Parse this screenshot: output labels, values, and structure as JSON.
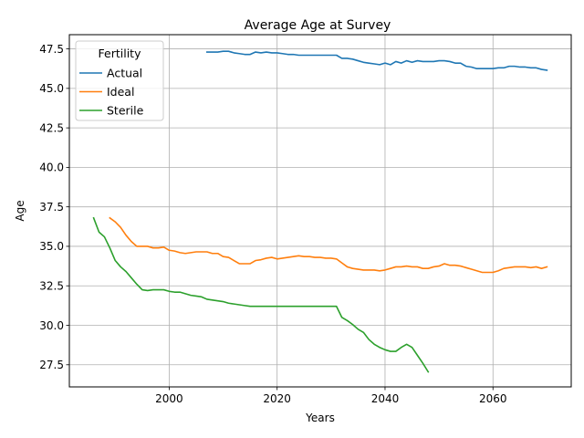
{
  "chart_data": {
    "type": "line",
    "title": "Average Age at Survey",
    "xlabel": "Years",
    "ylabel": "Age",
    "xlim": [
      1981.5,
      2074.5
    ],
    "ylim": [
      26.1,
      48.4
    ],
    "xticks": [
      2000,
      2020,
      2040,
      2060
    ],
    "yticks": [
      27.5,
      30.0,
      32.5,
      35.0,
      37.5,
      40.0,
      42.5,
      45.0,
      47.5
    ],
    "ytick_labels": [
      "27.5",
      "30.0",
      "32.5",
      "35.0",
      "37.5",
      "40.0",
      "42.5",
      "45.0",
      "47.5"
    ],
    "grid": true,
    "legend": {
      "title": "Fertility",
      "position": "top-left"
    },
    "series": [
      {
        "name": "Actual",
        "color": "#1f77b4",
        "points": [
          [
            2007,
            47.3
          ],
          [
            2008,
            47.3
          ],
          [
            2009,
            47.3
          ],
          [
            2010,
            47.35
          ],
          [
            2011,
            47.35
          ],
          [
            2012,
            47.25
          ],
          [
            2013,
            47.2
          ],
          [
            2014,
            47.15
          ],
          [
            2015,
            47.15
          ],
          [
            2016,
            47.3
          ],
          [
            2017,
            47.25
          ],
          [
            2018,
            47.3
          ],
          [
            2019,
            47.25
          ],
          [
            2020,
            47.25
          ],
          [
            2021,
            47.2
          ],
          [
            2022,
            47.15
          ],
          [
            2023,
            47.15
          ],
          [
            2024,
            47.1
          ],
          [
            2025,
            47.1
          ],
          [
            2026,
            47.1
          ],
          [
            2027,
            47.1
          ],
          [
            2028,
            47.1
          ],
          [
            2029,
            47.1
          ],
          [
            2030,
            47.1
          ],
          [
            2031,
            47.1
          ],
          [
            2032,
            46.9
          ],
          [
            2033,
            46.9
          ],
          [
            2034,
            46.85
          ],
          [
            2035,
            46.75
          ],
          [
            2036,
            46.65
          ],
          [
            2037,
            46.6
          ],
          [
            2038,
            46.55
          ],
          [
            2039,
            46.5
          ],
          [
            2040,
            46.6
          ],
          [
            2041,
            46.5
          ],
          [
            2042,
            46.7
          ],
          [
            2043,
            46.6
          ],
          [
            2044,
            46.75
          ],
          [
            2045,
            46.65
          ],
          [
            2046,
            46.75
          ],
          [
            2047,
            46.7
          ],
          [
            2048,
            46.7
          ],
          [
            2049,
            46.7
          ],
          [
            2050,
            46.75
          ],
          [
            2051,
            46.75
          ],
          [
            2052,
            46.7
          ],
          [
            2053,
            46.6
          ],
          [
            2054,
            46.6
          ],
          [
            2055,
            46.4
          ],
          [
            2056,
            46.35
          ],
          [
            2057,
            46.25
          ],
          [
            2058,
            46.25
          ],
          [
            2059,
            46.25
          ],
          [
            2060,
            46.25
          ],
          [
            2061,
            46.3
          ],
          [
            2062,
            46.3
          ],
          [
            2063,
            46.4
          ],
          [
            2064,
            46.4
          ],
          [
            2065,
            46.35
          ],
          [
            2066,
            46.35
          ],
          [
            2067,
            46.3
          ],
          [
            2068,
            46.3
          ],
          [
            2069,
            46.2
          ],
          [
            2070,
            46.15
          ]
        ]
      },
      {
        "name": "Ideal",
        "color": "#ff7f0e",
        "points": [
          [
            1989,
            36.8
          ],
          [
            1990,
            36.55
          ],
          [
            1991,
            36.2
          ],
          [
            1992,
            35.7
          ],
          [
            1993,
            35.3
          ],
          [
            1994,
            35.0
          ],
          [
            1995,
            35.0
          ],
          [
            1996,
            35.0
          ],
          [
            1997,
            34.9
          ],
          [
            1998,
            34.9
          ],
          [
            1999,
            34.95
          ],
          [
            2000,
            34.75
          ],
          [
            2001,
            34.7
          ],
          [
            2002,
            34.6
          ],
          [
            2003,
            34.55
          ],
          [
            2004,
            34.6
          ],
          [
            2005,
            34.65
          ],
          [
            2006,
            34.65
          ],
          [
            2007,
            34.65
          ],
          [
            2008,
            34.55
          ],
          [
            2009,
            34.55
          ],
          [
            2010,
            34.35
          ],
          [
            2011,
            34.3
          ],
          [
            2012,
            34.1
          ],
          [
            2013,
            33.9
          ],
          [
            2014,
            33.9
          ],
          [
            2015,
            33.9
          ],
          [
            2016,
            34.1
          ],
          [
            2017,
            34.15
          ],
          [
            2018,
            34.25
          ],
          [
            2019,
            34.3
          ],
          [
            2020,
            34.2
          ],
          [
            2021,
            34.25
          ],
          [
            2022,
            34.3
          ],
          [
            2023,
            34.35
          ],
          [
            2024,
            34.4
          ],
          [
            2025,
            34.35
          ],
          [
            2026,
            34.35
          ],
          [
            2027,
            34.3
          ],
          [
            2028,
            34.3
          ],
          [
            2029,
            34.25
          ],
          [
            2030,
            34.25
          ],
          [
            2031,
            34.2
          ],
          [
            2032,
            33.95
          ],
          [
            2033,
            33.7
          ],
          [
            2034,
            33.6
          ],
          [
            2035,
            33.55
          ],
          [
            2036,
            33.5
          ],
          [
            2037,
            33.5
          ],
          [
            2038,
            33.5
          ],
          [
            2039,
            33.45
          ],
          [
            2040,
            33.5
          ],
          [
            2041,
            33.6
          ],
          [
            2042,
            33.7
          ],
          [
            2043,
            33.7
          ],
          [
            2044,
            33.75
          ],
          [
            2045,
            33.7
          ],
          [
            2046,
            33.7
          ],
          [
            2047,
            33.6
          ],
          [
            2048,
            33.6
          ],
          [
            2049,
            33.7
          ],
          [
            2050,
            33.75
          ],
          [
            2051,
            33.9
          ],
          [
            2052,
            33.8
          ],
          [
            2053,
            33.8
          ],
          [
            2054,
            33.75
          ],
          [
            2055,
            33.65
          ],
          [
            2056,
            33.55
          ],
          [
            2057,
            33.45
          ],
          [
            2058,
            33.35
          ],
          [
            2059,
            33.35
          ],
          [
            2060,
            33.35
          ],
          [
            2061,
            33.45
          ],
          [
            2062,
            33.6
          ],
          [
            2063,
            33.65
          ],
          [
            2064,
            33.7
          ],
          [
            2065,
            33.7
          ],
          [
            2066,
            33.7
          ],
          [
            2067,
            33.65
          ],
          [
            2068,
            33.7
          ],
          [
            2069,
            33.6
          ],
          [
            2070,
            33.7
          ]
        ]
      },
      {
        "name": "Sterile",
        "color": "#2ca02c",
        "points": [
          [
            1986,
            36.8
          ],
          [
            1987,
            35.9
          ],
          [
            1988,
            35.6
          ],
          [
            1989,
            34.9
          ],
          [
            1990,
            34.1
          ],
          [
            1991,
            33.7
          ],
          [
            1992,
            33.4
          ],
          [
            1993,
            33.0
          ],
          [
            1994,
            32.6
          ],
          [
            1995,
            32.25
          ],
          [
            1996,
            32.2
          ],
          [
            1997,
            32.25
          ],
          [
            1998,
            32.25
          ],
          [
            1999,
            32.25
          ],
          [
            2000,
            32.15
          ],
          [
            2001,
            32.1
          ],
          [
            2002,
            32.1
          ],
          [
            2003,
            32.0
          ],
          [
            2004,
            31.9
          ],
          [
            2005,
            31.85
          ],
          [
            2006,
            31.8
          ],
          [
            2007,
            31.65
          ],
          [
            2008,
            31.6
          ],
          [
            2009,
            31.55
          ],
          [
            2010,
            31.5
          ],
          [
            2011,
            31.4
          ],
          [
            2012,
            31.35
          ],
          [
            2013,
            31.3
          ],
          [
            2014,
            31.25
          ],
          [
            2015,
            31.2
          ],
          [
            2016,
            31.2
          ],
          [
            2017,
            31.2
          ],
          [
            2018,
            31.2
          ],
          [
            2019,
            31.2
          ],
          [
            2020,
            31.2
          ],
          [
            2021,
            31.2
          ],
          [
            2022,
            31.2
          ],
          [
            2023,
            31.2
          ],
          [
            2024,
            31.2
          ],
          [
            2025,
            31.2
          ],
          [
            2026,
            31.2
          ],
          [
            2027,
            31.2
          ],
          [
            2028,
            31.2
          ],
          [
            2029,
            31.2
          ],
          [
            2030,
            31.2
          ],
          [
            2031,
            31.2
          ],
          [
            2032,
            30.5
          ],
          [
            2033,
            30.3
          ],
          [
            2034,
            30.05
          ],
          [
            2035,
            29.75
          ],
          [
            2036,
            29.55
          ],
          [
            2037,
            29.1
          ],
          [
            2038,
            28.8
          ],
          [
            2039,
            28.6
          ],
          [
            2040,
            28.45
          ],
          [
            2041,
            28.35
          ],
          [
            2042,
            28.35
          ],
          [
            2043,
            28.6
          ],
          [
            2044,
            28.8
          ],
          [
            2045,
            28.6
          ],
          [
            2046,
            28.1
          ],
          [
            2047,
            27.6
          ],
          [
            2048,
            27.05
          ]
        ]
      }
    ]
  }
}
